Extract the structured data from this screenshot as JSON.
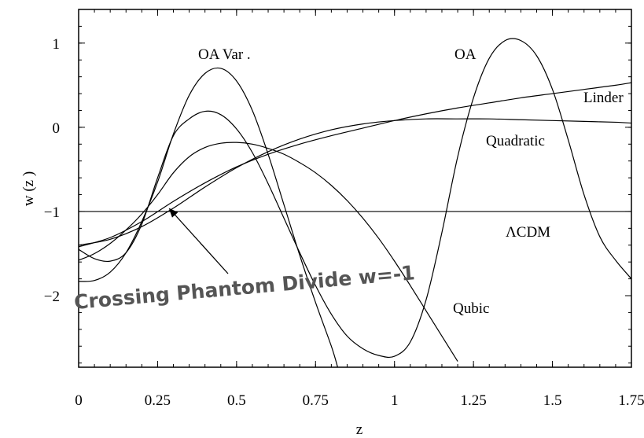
{
  "chart_data": {
    "type": "line",
    "title": "",
    "xlabel": "z",
    "ylabel": "w  (z )",
    "xlim": [
      0,
      1.75
    ],
    "ylim": [
      -2.85,
      1.4
    ],
    "x_ticks": [
      {
        "value": 0,
        "label": "0"
      },
      {
        "value": 0.25,
        "label": "0.25"
      },
      {
        "value": 0.5,
        "label": "0.5"
      },
      {
        "value": 0.75,
        "label": "0.75"
      },
      {
        "value": 1,
        "label": "1"
      },
      {
        "value": 1.25,
        "label": "1.25"
      },
      {
        "value": 1.5,
        "label": "1.5"
      },
      {
        "value": 1.75,
        "label": "1.75"
      }
    ],
    "y_ticks": [
      {
        "value": 1,
        "label": "1"
      },
      {
        "value": 0,
        "label": "0"
      },
      {
        "value": -1,
        "label": "−1"
      },
      {
        "value": -2,
        "label": "−2"
      }
    ],
    "series": [
      {
        "name": "Linder",
        "x": [
          0,
          0.1,
          0.2,
          0.3,
          0.4,
          0.5,
          0.6,
          0.7,
          0.8,
          0.9,
          1.0,
          1.1,
          1.2,
          1.3,
          1.4,
          1.5,
          1.6,
          1.7,
          1.75
        ],
        "y": [
          -1.42,
          -1.31,
          -1.12,
          -0.88,
          -0.66,
          -0.47,
          -0.32,
          -0.2,
          -0.1,
          -0.01,
          0.08,
          0.16,
          0.23,
          0.29,
          0.35,
          0.4,
          0.45,
          0.5,
          0.53
        ]
      },
      {
        "name": "Quadratic",
        "x": [
          0,
          0.1,
          0.2,
          0.3,
          0.4,
          0.5,
          0.6,
          0.7,
          0.8,
          0.9,
          1.0,
          1.1,
          1.2,
          1.3,
          1.4,
          1.5,
          1.6,
          1.7,
          1.75
        ],
        "y": [
          -1.4,
          -1.33,
          -1.18,
          -0.96,
          -0.71,
          -0.48,
          -0.29,
          -0.14,
          -0.03,
          0.04,
          0.08,
          0.1,
          0.1,
          0.1,
          0.09,
          0.08,
          0.07,
          0.06,
          0.05
        ]
      },
      {
        "name": "Qubic",
        "x": [
          0,
          0.05,
          0.1,
          0.15,
          0.2,
          0.25,
          0.3,
          0.35,
          0.4,
          0.45,
          0.5,
          0.55,
          0.6,
          0.65,
          0.7,
          0.75,
          0.8,
          0.85,
          0.9,
          0.95,
          1.0,
          1.05,
          1.1,
          1.15,
          1.2
        ],
        "y": [
          -1.58,
          -1.5,
          -1.38,
          -1.22,
          -1.03,
          -0.8,
          -0.54,
          -0.35,
          -0.24,
          -0.19,
          -0.18,
          -0.2,
          -0.25,
          -0.32,
          -0.42,
          -0.54,
          -0.69,
          -0.87,
          -1.08,
          -1.32,
          -1.59,
          -1.88,
          -2.18,
          -2.48,
          -2.78
        ]
      },
      {
        "name": "OA",
        "x": [
          0,
          0.05,
          0.1,
          0.15,
          0.2,
          0.25,
          0.3,
          0.35,
          0.4,
          0.45,
          0.5,
          0.55,
          0.6,
          0.65,
          0.7,
          0.75,
          0.8,
          0.85,
          0.9,
          0.95,
          1.0,
          1.05,
          1.1,
          1.15,
          1.2,
          1.25,
          1.3,
          1.35,
          1.4,
          1.45,
          1.5,
          1.55,
          1.6,
          1.65,
          1.7,
          1.75
        ],
        "y": [
          -1.45,
          -1.56,
          -1.59,
          -1.49,
          -1.15,
          -0.6,
          -0.1,
          0.1,
          0.19,
          0.15,
          -0.02,
          -0.3,
          -0.67,
          -1.08,
          -1.49,
          -1.88,
          -2.22,
          -2.48,
          -2.63,
          -2.71,
          -2.72,
          -2.55,
          -2.05,
          -1.25,
          -0.35,
          0.35,
          0.82,
          1.03,
          1.03,
          0.85,
          0.45,
          -0.15,
          -0.8,
          -1.3,
          -1.58,
          -1.8
        ]
      },
      {
        "name": "OA  Var .",
        "x": [
          0,
          0.05,
          0.1,
          0.15,
          0.2,
          0.25,
          0.3,
          0.35,
          0.4,
          0.45,
          0.5,
          0.55,
          0.6,
          0.65,
          0.7,
          0.75,
          0.8,
          0.82
        ],
        "y": [
          -1.83,
          -1.82,
          -1.72,
          -1.49,
          -1.12,
          -0.65,
          -0.08,
          0.38,
          0.64,
          0.7,
          0.55,
          0.2,
          -0.32,
          -0.92,
          -1.52,
          -2.08,
          -2.6,
          -2.85
        ]
      },
      {
        "name": "ΛCDM",
        "x": [
          0,
          1.75
        ],
        "y": [
          -1,
          -1
        ]
      }
    ],
    "annotations": {
      "callout": "Crossing Phantom Divide w=-1",
      "callout_target": {
        "x": 0.26,
        "y": -1.05
      }
    }
  }
}
